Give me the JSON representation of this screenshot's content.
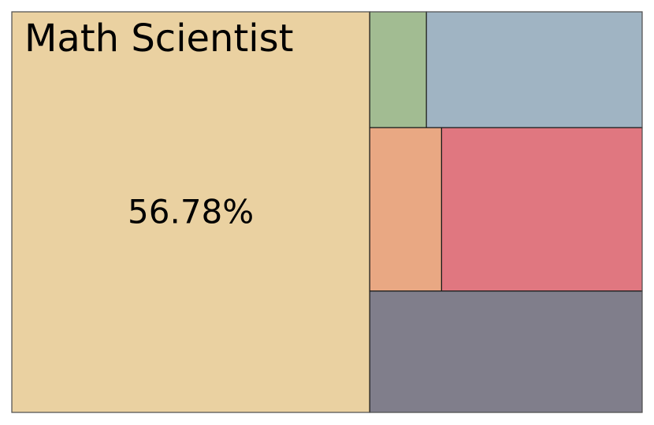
{
  "chart_data": {
    "type": "treemap",
    "title": "",
    "items": [
      {
        "label": "Math Scientist",
        "value_label": "56.78%",
        "value": 56.78,
        "color": "#EAD1A1"
      },
      {
        "label": "",
        "value": 2.6,
        "color": "#A2BC92"
      },
      {
        "label": "",
        "value": 9.9,
        "color": "#A0B4C3"
      },
      {
        "label": "",
        "value": 4.65,
        "color": "#E9A883"
      },
      {
        "label": "",
        "value": 12.98,
        "color": "#E07780"
      },
      {
        "label": "",
        "value": 13.09,
        "color": "#807E8B"
      }
    ],
    "colors": {
      "border": "#1a1a1a",
      "frame": "#555555",
      "background": "#ffffff"
    }
  }
}
